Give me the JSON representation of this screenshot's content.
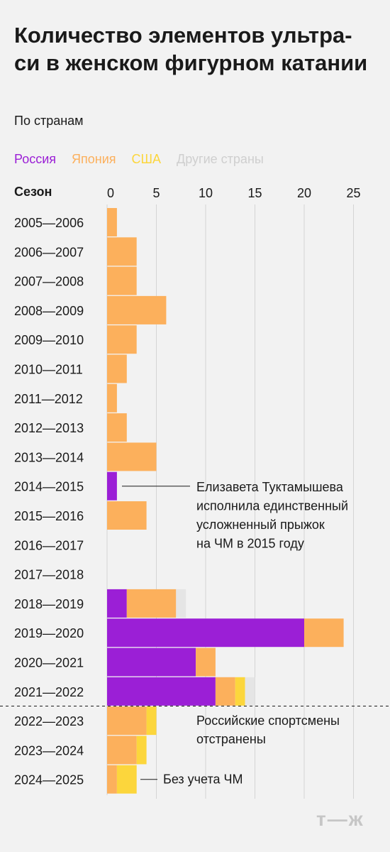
{
  "title": "Количество элементов ультра-си в женском фигурном катании",
  "subtitle": "По странам",
  "legend": [
    {
      "label": "Россия",
      "color": "#9b1fd6"
    },
    {
      "label": "Япония",
      "color": "#fcb05c"
    },
    {
      "label": "США",
      "color": "#fcd63c"
    },
    {
      "label": "Другие страны",
      "color": "#e5e5e5"
    }
  ],
  "header_label": "Сезон",
  "logo": "т—ж",
  "chart_data": {
    "type": "bar",
    "orientation": "horizontal",
    "stacked": true,
    "xlim": [
      0,
      25
    ],
    "ticks": [
      0,
      5,
      10,
      15,
      20,
      25
    ],
    "categories": [
      "2005—2006",
      "2006—2007",
      "2007—2008",
      "2008—2009",
      "2009—2010",
      "2010—2011",
      "2011—2012",
      "2012—2013",
      "2013—2014",
      "2014—2015",
      "2015—2016",
      "2016—2017",
      "2017—2018",
      "2018—2019",
      "2019—2020",
      "2020—2021",
      "2021—2022",
      "2022—2023",
      "2023—2024",
      "2024—2025"
    ],
    "series": [
      {
        "name": "Россия",
        "color": "#9b1fd6",
        "values": [
          0,
          0,
          0,
          0,
          0,
          0,
          0,
          0,
          0,
          1,
          0,
          0,
          0,
          2,
          20,
          9,
          11,
          0,
          0,
          0
        ]
      },
      {
        "name": "Япония",
        "color": "#fcb05c",
        "values": [
          1,
          3,
          3,
          6,
          3,
          2,
          1,
          2,
          5,
          0,
          4,
          0,
          0,
          5,
          4,
          2,
          2,
          4,
          3,
          1
        ]
      },
      {
        "name": "США",
        "color": "#fcd63c",
        "values": [
          0,
          0,
          0,
          0,
          0,
          0,
          0,
          0,
          0,
          0,
          0,
          0,
          0,
          0,
          0,
          0,
          1,
          1,
          1,
          2
        ]
      },
      {
        "name": "Другие страны",
        "color": "#e5e5e5",
        "values": [
          0,
          0,
          0,
          0,
          0,
          0,
          0,
          0,
          0,
          0,
          0,
          0,
          0,
          1,
          0,
          0,
          1,
          0,
          0,
          0
        ]
      }
    ],
    "annotations": [
      {
        "category": "2014—2015",
        "lines": [
          "Елизавета Туктамышева",
          "исполнила единственный",
          "усложненный прыжок",
          "на ЧМ в 2015 году"
        ]
      },
      {
        "after_category": "2021—2022",
        "lines": [
          "Российские спортсмены",
          "отстранены"
        ]
      },
      {
        "category": "2024—2025",
        "lines": [
          "Без учета ЧМ"
        ]
      }
    ]
  }
}
